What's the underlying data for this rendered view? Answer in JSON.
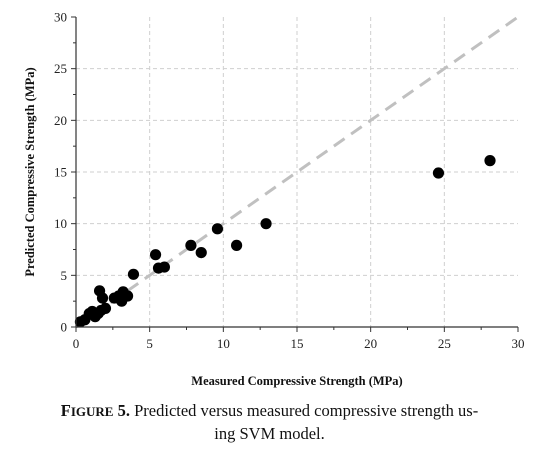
{
  "chart_data": {
    "type": "scatter",
    "title": "",
    "xlabel": "Measured Compressive Strength (MPa)",
    "ylabel": "Predicted Compressive Strength (MPa)",
    "xlim": [
      0,
      30
    ],
    "ylim": [
      0,
      30
    ],
    "x_ticks": [
      "0",
      "5",
      "10",
      "15",
      "20",
      "25",
      "30"
    ],
    "y_ticks": [
      "0",
      "5",
      "10",
      "15",
      "20",
      "25",
      "30"
    ],
    "grid": true,
    "legend": "none",
    "reference_line": {
      "style": "dashed",
      "from": [
        0,
        0
      ],
      "to": [
        30,
        30
      ],
      "color": "#c0c0c0"
    },
    "marker_color": "#000000",
    "series": [
      {
        "points": [
          [
            0.3,
            0.5
          ],
          [
            0.6,
            0.7
          ],
          [
            0.9,
            1.3
          ],
          [
            1.1,
            1.5
          ],
          [
            1.3,
            1.0
          ],
          [
            1.5,
            1.3
          ],
          [
            1.7,
            1.6
          ],
          [
            1.6,
            3.5
          ],
          [
            1.8,
            2.8
          ],
          [
            2.0,
            1.8
          ],
          [
            2.6,
            2.8
          ],
          [
            2.9,
            3.0
          ],
          [
            3.1,
            2.5
          ],
          [
            3.2,
            3.4
          ],
          [
            3.5,
            3.0
          ],
          [
            3.9,
            5.1
          ],
          [
            5.4,
            7.0
          ],
          [
            5.6,
            5.7
          ],
          [
            6.0,
            5.8
          ],
          [
            7.8,
            7.9
          ],
          [
            8.5,
            7.2
          ],
          [
            9.6,
            9.5
          ],
          [
            10.9,
            7.9
          ],
          [
            12.9,
            10.0
          ],
          [
            24.6,
            14.9
          ],
          [
            28.1,
            16.1
          ]
        ]
      }
    ]
  },
  "caption": {
    "label_first": "F",
    "label_rest": "IGURE",
    "label_number": "5.",
    "text_line1": "Predicted versus measured compressive strength us-",
    "text_line2": "ing SVM model."
  }
}
